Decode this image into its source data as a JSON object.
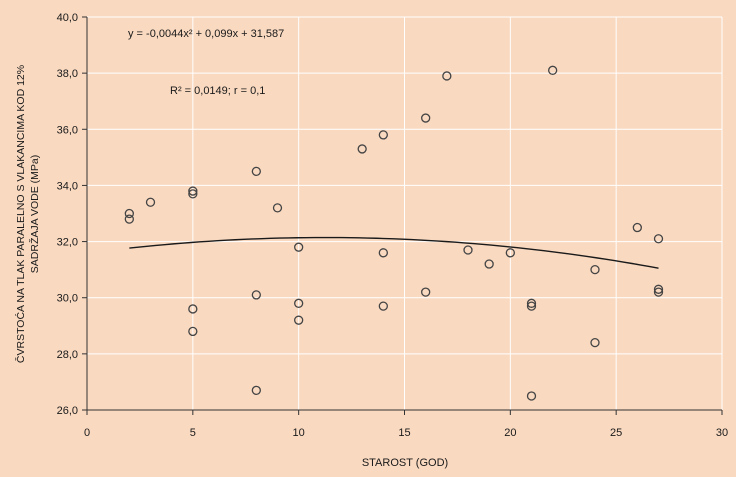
{
  "chart_data": {
    "type": "scatter",
    "background_color": "#f9d9c0",
    "grid": true,
    "grid_color": "#ffffff",
    "marker": "open-circle",
    "marker_color": "#444444",
    "trendline": {
      "type": "polynomial",
      "degree": 2,
      "coefficients": [
        -0.0044,
        0.099,
        31.587
      ],
      "x_range": [
        2,
        27
      ],
      "color": "#1a1a1a"
    },
    "annotations": {
      "equation": "y = -0,0044x² + 0,099x + 31,587",
      "r_squared": "R² = 0,0149; r = 0,1"
    },
    "xlabel": "STAROST (GOD)",
    "ylabel_line1": "ČVRSTOĆA NA TLAK PARALELNO S VLAKANCIMA KOD 12%",
    "ylabel_line2": "SADRŽAJA VODE (MPa)",
    "xlim": [
      0,
      30
    ],
    "ylim": [
      26,
      40
    ],
    "x_ticks": [
      0,
      5,
      10,
      15,
      20,
      25,
      30
    ],
    "x_tick_labels": [
      "0",
      "5",
      "10",
      "15",
      "20",
      "25",
      "30"
    ],
    "y_ticks": [
      26,
      28,
      30,
      32,
      34,
      36,
      38,
      40
    ],
    "y_tick_labels": [
      "26,0",
      "28,0",
      "30,0",
      "32,0",
      "34,0",
      "36,0",
      "38,0",
      "40,0"
    ],
    "points": [
      {
        "x": 2,
        "y": 33.0
      },
      {
        "x": 2,
        "y": 32.8
      },
      {
        "x": 3,
        "y": 33.4
      },
      {
        "x": 5,
        "y": 33.8
      },
      {
        "x": 5,
        "y": 33.7
      },
      {
        "x": 5,
        "y": 29.6
      },
      {
        "x": 5,
        "y": 28.8
      },
      {
        "x": 8,
        "y": 34.5
      },
      {
        "x": 8,
        "y": 30.1
      },
      {
        "x": 8,
        "y": 26.7
      },
      {
        "x": 9,
        "y": 33.2
      },
      {
        "x": 10,
        "y": 31.8
      },
      {
        "x": 10,
        "y": 29.8
      },
      {
        "x": 10,
        "y": 29.2
      },
      {
        "x": 13,
        "y": 35.3
      },
      {
        "x": 14,
        "y": 35.8
      },
      {
        "x": 14,
        "y": 31.6
      },
      {
        "x": 14,
        "y": 29.7
      },
      {
        "x": 16,
        "y": 36.4
      },
      {
        "x": 16,
        "y": 30.2
      },
      {
        "x": 17,
        "y": 37.9
      },
      {
        "x": 18,
        "y": 31.7
      },
      {
        "x": 19,
        "y": 31.2
      },
      {
        "x": 20,
        "y": 31.6
      },
      {
        "x": 21,
        "y": 29.8
      },
      {
        "x": 21,
        "y": 29.7
      },
      {
        "x": 21,
        "y": 26.5
      },
      {
        "x": 22,
        "y": 38.1
      },
      {
        "x": 24,
        "y": 31.0
      },
      {
        "x": 24,
        "y": 28.4
      },
      {
        "x": 26,
        "y": 32.5
      },
      {
        "x": 27,
        "y": 32.1
      },
      {
        "x": 27,
        "y": 30.3
      },
      {
        "x": 27,
        "y": 30.2
      }
    ]
  }
}
